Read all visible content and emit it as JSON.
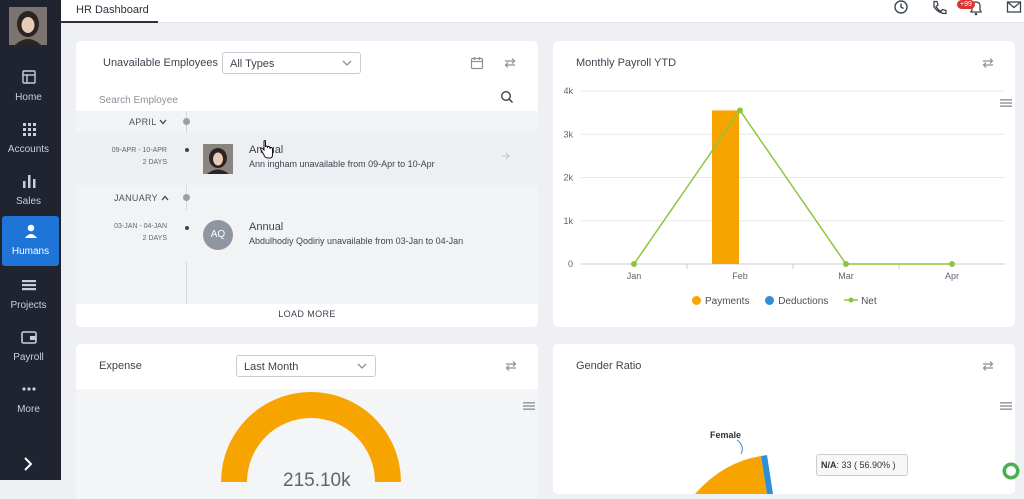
{
  "app": {
    "tab_label": "HR Dashboard",
    "notification_count": "+99"
  },
  "sidebar": {
    "items": [
      {
        "label": "Home"
      },
      {
        "label": "Accounts"
      },
      {
        "label": "Sales"
      },
      {
        "label": "Humans"
      },
      {
        "label": "Projects"
      },
      {
        "label": "Payroll"
      },
      {
        "label": "More"
      }
    ]
  },
  "unavailable": {
    "title": "Unavailable Employees",
    "filter_value": "All Types",
    "search_placeholder": "Search Employee",
    "groups": [
      {
        "month": "APRIL",
        "date_range": "09-APR - 10-APR",
        "days": "2 DAYS",
        "type": "Annual",
        "description": "Ann ingham unavailable from 09-Apr to 10-Apr"
      },
      {
        "month": "JANUARY",
        "date_range": "03-JAN - 04-JAN",
        "days": "2 DAYS",
        "initials": "AQ",
        "type": "Annual",
        "description": "Abdulhodiy Qodiriy unavailable from 03-Jan to 04-Jan"
      }
    ],
    "load_more": "LOAD MORE"
  },
  "payroll": {
    "title": "Monthly Payroll YTD",
    "legend": [
      "Payments",
      "Deductions",
      "Net"
    ]
  },
  "expense": {
    "title": "Expense",
    "filter_value": "Last Month",
    "center_value": "215.10k"
  },
  "gender": {
    "title": "Gender Ratio",
    "label_female": "Female",
    "tooltip_key": "N/A",
    "tooltip_value": ": 33 ( 56.90% )"
  },
  "colors": {
    "payments": "#f7a400",
    "deductions": "#2f8fd6",
    "net": "#8cc63f",
    "accent": "#1f74d8"
  },
  "chart_data": {
    "type": "bar",
    "categories": [
      "Jan",
      "Feb",
      "Mar",
      "Apr"
    ],
    "ylim": [
      0,
      4000
    ],
    "yticks": [
      "0",
      "1k",
      "2k",
      "3k",
      "4k"
    ],
    "series": [
      {
        "name": "Payments",
        "type": "bar",
        "values": [
          0,
          3550,
          0,
          0
        ]
      },
      {
        "name": "Deductions",
        "type": "bar",
        "values": [
          0,
          0,
          0,
          0
        ]
      },
      {
        "name": "Net",
        "type": "line",
        "values": [
          0,
          3550,
          0,
          0
        ]
      }
    ],
    "legend_position": "bottom"
  }
}
